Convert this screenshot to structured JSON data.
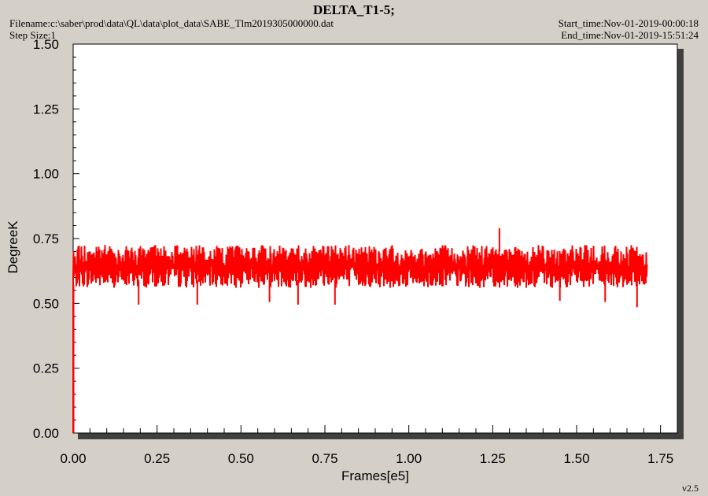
{
  "header": {
    "filename": "Filename:c:\\saber\\prod\\data\\QL\\data\\plot_data\\SABE_Tlm2019305000000.dat",
    "step_size": "Step Size:1",
    "start_time": "Start_time:Nov-01-2019-00:00:18",
    "end_time": "End_time:Nov-01-2019-15:51:24",
    "version": "v2.5"
  },
  "colors": {
    "background": "#d4d0c8",
    "plot_area": "#ffffff",
    "series": "#ff0000",
    "shadow": "#404040"
  },
  "chart_data": {
    "type": "line",
    "title": "DELTA_T1-5;",
    "xlabel": "Frames[e5]",
    "ylabel": "DegreeK",
    "xlim": [
      0.0,
      1.8
    ],
    "ylim": [
      0.0,
      1.5
    ],
    "xticks": [
      "0.00",
      "0.25",
      "0.50",
      "0.75",
      "1.00",
      "1.25",
      "1.50",
      "1.75"
    ],
    "yticks": [
      "0.00",
      "0.25",
      "0.50",
      "0.75",
      "1.00",
      "1.25",
      "1.50"
    ],
    "grid": false,
    "legend": "none",
    "series": [
      {
        "x_range": [
          0.0,
          1.71
        ],
        "band_low": 0.57,
        "band_high": 0.72,
        "start_value": 0.0,
        "spikes": [
          {
            "x": 1.27,
            "y": 0.79
          },
          {
            "x": 0.195,
            "y": 0.495
          },
          {
            "x": 0.37,
            "y": 0.495
          },
          {
            "x": 0.585,
            "y": 0.505
          },
          {
            "x": 0.67,
            "y": 0.495
          },
          {
            "x": 0.78,
            "y": 0.495
          },
          {
            "x": 1.45,
            "y": 0.51
          },
          {
            "x": 1.585,
            "y": 0.505
          },
          {
            "x": 1.68,
            "y": 0.485
          }
        ]
      }
    ]
  }
}
